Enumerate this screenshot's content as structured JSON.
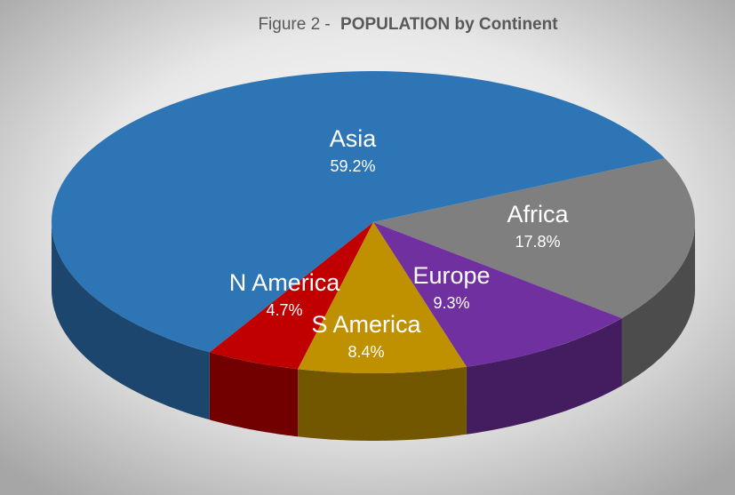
{
  "chart_data": {
    "type": "pie3d",
    "title": [
      "Figure 2 -",
      "POPULATION by Continent"
    ],
    "categories": [
      "Africa",
      "Europe",
      "S America",
      "N America",
      "Asia"
    ],
    "values": [
      17.8,
      9.3,
      8.4,
      4.7,
      59.2
    ],
    "value_labels": [
      "17.8%",
      "9.3%",
      "8.4%",
      "4.7%",
      "59.2%"
    ],
    "colors": [
      "#7f7f7f",
      "#7030a0",
      "#bf9000",
      "#c00000",
      "#2e75b6"
    ]
  }
}
